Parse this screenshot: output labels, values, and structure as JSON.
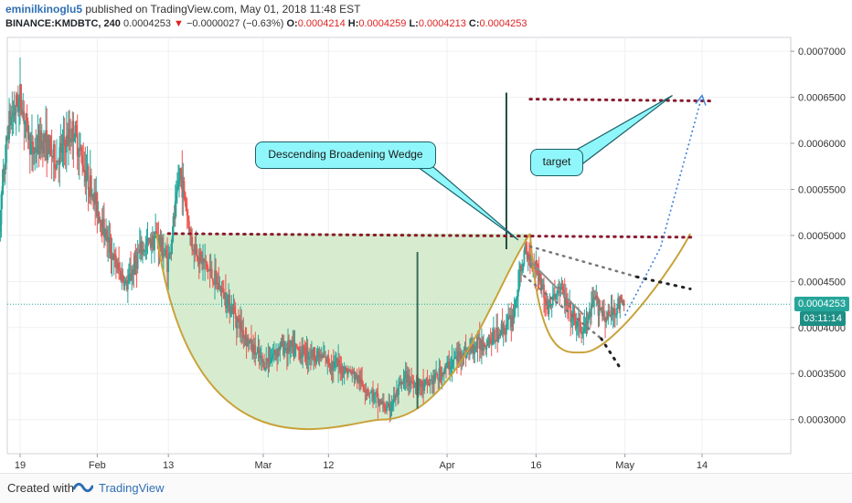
{
  "header": {
    "author": "eminilkinoglu5",
    "published_text": "published on TradingView.com, May 01, 2018 11:48 EST",
    "symbol": "BINANCE:KMDBTC, 240",
    "last_price": "0.0004253",
    "change_arrow": "▼",
    "change": "−0.0000027 (−0.63%)",
    "o_label": "O:",
    "o_value": "0.0004214",
    "h_label": "H:",
    "h_value": "0.0004259",
    "l_label": "L:",
    "l_value": "0.0004213",
    "c_label": "C:",
    "c_value": "0.0004253"
  },
  "chart_data": {
    "type": "candlestick",
    "symbol": "BINANCE:KMDBTC",
    "interval": "240",
    "x_ticks": [
      "19",
      "Feb",
      "13",
      "Mar",
      "12",
      "Apr",
      "16",
      "May",
      "14"
    ],
    "x_tick_dates": [
      "2018-01-19",
      "2018-02-01",
      "2018-02-13",
      "2018-03-01",
      "2018-03-12",
      "2018-04-01",
      "2018-04-16",
      "2018-05-01",
      "2018-05-14"
    ],
    "y_ticks": [
      "0.0003000",
      "0.0003500",
      "0.0004000",
      "0.0004500",
      "0.0005000",
      "0.0005500",
      "0.0006000",
      "0.0006500",
      "0.0007000"
    ],
    "ylim": [
      0.000263,
      0.000715
    ],
    "current_price": "0.0004253",
    "countdown": "03:11:14",
    "price_path": [
      [
        "2018-01-15",
        0.000475
      ],
      [
        "2018-01-17",
        0.00062
      ],
      [
        "2018-01-19",
        0.00065
      ],
      [
        "2018-01-21",
        0.00059
      ],
      [
        "2018-01-23",
        0.000605
      ],
      [
        "2018-01-25",
        0.00058
      ],
      [
        "2018-01-28",
        0.000615
      ],
      [
        "2018-01-30",
        0.00057
      ],
      [
        "2018-02-01",
        0.00053
      ],
      [
        "2018-02-04",
        0.00047
      ],
      [
        "2018-02-06",
        0.000445
      ],
      [
        "2018-02-08",
        0.00048
      ],
      [
        "2018-02-11",
        0.0005
      ],
      [
        "2018-02-13",
        0.00047
      ],
      [
        "2018-02-15",
        0.00057
      ],
      [
        "2018-02-17",
        0.00049
      ],
      [
        "2018-02-20",
        0.00046
      ],
      [
        "2018-02-23",
        0.00043
      ],
      [
        "2018-02-26",
        0.00039
      ],
      [
        "2018-03-01",
        0.00036
      ],
      [
        "2018-03-04",
        0.00038
      ],
      [
        "2018-03-07",
        0.000375
      ],
      [
        "2018-03-10",
        0.00037
      ],
      [
        "2018-03-13",
        0.00036
      ],
      [
        "2018-03-16",
        0.00035
      ],
      [
        "2018-03-19",
        0.00033
      ],
      [
        "2018-03-22",
        0.00031
      ],
      [
        "2018-03-25",
        0.000345
      ],
      [
        "2018-03-28",
        0.000335
      ],
      [
        "2018-03-31",
        0.00035
      ],
      [
        "2018-04-03",
        0.00037
      ],
      [
        "2018-04-06",
        0.00038
      ],
      [
        "2018-04-09",
        0.00039
      ],
      [
        "2018-04-12",
        0.00041
      ],
      [
        "2018-04-14",
        0.00048
      ],
      [
        "2018-04-16",
        0.00047
      ],
      [
        "2018-04-18",
        0.00042
      ],
      [
        "2018-04-20",
        0.000445
      ],
      [
        "2018-04-22",
        0.00041
      ],
      [
        "2018-04-24",
        0.000395
      ],
      [
        "2018-04-26",
        0.00043
      ],
      [
        "2018-04-28",
        0.00041
      ],
      [
        "2018-04-30",
        0.000425
      ],
      [
        "2018-05-01",
        0.0004253
      ]
    ],
    "cup_shading_color": "#d5ebcc",
    "cup_curve_color": "#c9a23a",
    "annotations": [
      {
        "type": "callout",
        "text": "Descending Broadening Wedge"
      },
      {
        "type": "callout",
        "text": "target"
      }
    ],
    "colors": {
      "up_candle": "#26a69a",
      "down_candle": "#ef5350",
      "resistance_dotted": "#8b1a2e",
      "wedge_dotted": "#555555",
      "target_projection": "#3b7fd9",
      "callout_fill": "#8ff7fb",
      "pattern_line": "#1f4b3f"
    }
  },
  "footer": {
    "created_with": "Created with",
    "brand": "TradingView"
  }
}
